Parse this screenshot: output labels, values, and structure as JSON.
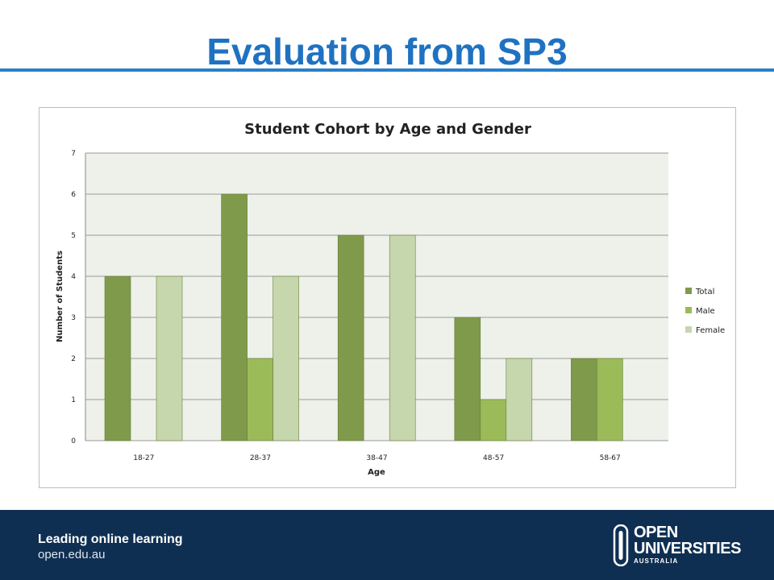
{
  "slide": {
    "title": "Evaluation from SP3"
  },
  "footer": {
    "tagline": "Leading online learning",
    "url": "open.edu.au",
    "logo": {
      "line1": "OPEN",
      "line2": "UNIVERSITIES",
      "line3": "AUSTRALIA",
      "icon": "open-universities-mark-icon"
    }
  },
  "colors": {
    "title": "#1f72c2",
    "rule": "#2a7fc9",
    "footer_bg": "#0f2f52",
    "plot_bg": "#eef1e9",
    "total": "#7f9a4a",
    "male": "#9bbb59",
    "female": "#c6d6ad"
  },
  "chart_data": {
    "type": "bar",
    "title": "Student Cohort by Age and Gender",
    "xlabel": "Age",
    "ylabel": "Number of Students",
    "categories": [
      "18-27",
      "28-37",
      "38-47",
      "48-57",
      "58-67"
    ],
    "series": [
      {
        "name": "Total",
        "color": "#7f9a4a",
        "values": [
          4,
          6,
          5,
          3,
          2
        ]
      },
      {
        "name": "Male",
        "color": "#9bbb59",
        "values": [
          0,
          2,
          0,
          1,
          2
        ]
      },
      {
        "name": "Female",
        "color": "#c6d6ad",
        "values": [
          4,
          4,
          5,
          2,
          0
        ]
      }
    ],
    "ylim": [
      0,
      7
    ],
    "yticks": [
      "0",
      "1",
      "2",
      "3",
      "4",
      "5",
      "6",
      "7"
    ],
    "grid": true,
    "legend": "right"
  }
}
